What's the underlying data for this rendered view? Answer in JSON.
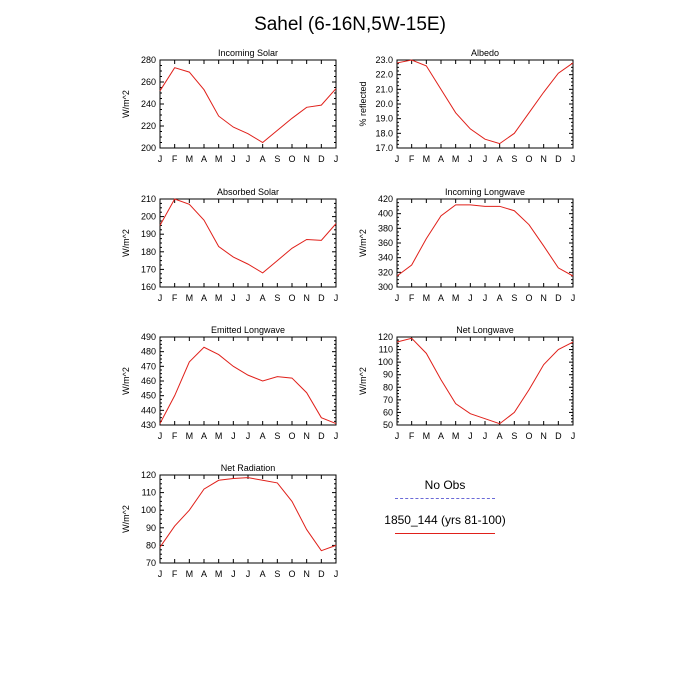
{
  "title": "Sahel (6-16N,5W-15E)",
  "legend": {
    "items": [
      {
        "label": "No Obs",
        "color": "#6a6ad8",
        "style": "dashed"
      },
      {
        "label": "1850_144 (yrs 81-100)",
        "color": "#e0201a",
        "style": "solid"
      }
    ]
  },
  "chart_data": [
    {
      "type": "line",
      "title": "Incoming Solar",
      "ylabel": "W/m^2",
      "categories": [
        "J",
        "F",
        "M",
        "A",
        "M",
        "J",
        "J",
        "A",
        "S",
        "O",
        "N",
        "D",
        "J"
      ],
      "ylim": [
        200,
        280
      ],
      "yticks": [
        200,
        220,
        240,
        260,
        280
      ],
      "ytick_labels": [
        "200",
        "220",
        "240",
        "260",
        "280"
      ],
      "series": [
        {
          "name": "1850_144 (yrs 81-100)",
          "color": "#e0201a",
          "values": [
            252,
            273,
            269,
            253,
            229,
            219,
            213,
            205,
            216,
            227,
            237,
            239,
            254
          ]
        }
      ]
    },
    {
      "type": "line",
      "title": "Albedo",
      "ylabel": "% reflected",
      "categories": [
        "J",
        "F",
        "M",
        "A",
        "M",
        "J",
        "J",
        "A",
        "S",
        "O",
        "N",
        "D",
        "J"
      ],
      "ylim": [
        17,
        23
      ],
      "yticks": [
        17,
        18,
        19,
        20,
        21,
        22,
        23
      ],
      "ytick_labels": [
        "17.0",
        "18.0",
        "19.0",
        "20.0",
        "21.0",
        "22.0",
        "23.0"
      ],
      "series": [
        {
          "name": "1850_144 (yrs 81-100)",
          "color": "#e0201a",
          "values": [
            22.8,
            23.0,
            22.6,
            21.0,
            19.4,
            18.3,
            17.6,
            17.3,
            18.0,
            19.4,
            20.8,
            22.1,
            22.8
          ]
        }
      ]
    },
    {
      "type": "line",
      "title": "Absorbed Solar",
      "ylabel": "W/m^2",
      "categories": [
        "J",
        "F",
        "M",
        "A",
        "M",
        "J",
        "J",
        "A",
        "S",
        "O",
        "N",
        "D",
        "J"
      ],
      "ylim": [
        160,
        210
      ],
      "yticks": [
        160,
        170,
        180,
        190,
        200,
        210
      ],
      "ytick_labels": [
        "160",
        "170",
        "180",
        "190",
        "200",
        "210"
      ],
      "series": [
        {
          "name": "1850_144 (yrs 81-100)",
          "color": "#e0201a",
          "values": [
            195,
            210,
            207,
            198,
            183,
            177,
            173,
            168,
            175,
            182,
            187,
            186.5,
            196
          ]
        }
      ]
    },
    {
      "type": "line",
      "title": "Incoming Longwave",
      "ylabel": "W/m^2",
      "categories": [
        "J",
        "F",
        "M",
        "A",
        "M",
        "J",
        "J",
        "A",
        "S",
        "O",
        "N",
        "D",
        "J"
      ],
      "ylim": [
        300,
        420
      ],
      "yticks": [
        300,
        320,
        340,
        360,
        380,
        400,
        420
      ],
      "ytick_labels": [
        "300",
        "320",
        "340",
        "360",
        "380",
        "400",
        "420"
      ],
      "series": [
        {
          "name": "1850_144 (yrs 81-100)",
          "color": "#e0201a",
          "values": [
            315,
            330,
            366,
            397,
            412,
            412,
            410,
            410,
            404,
            385,
            356,
            326,
            315
          ]
        }
      ]
    },
    {
      "type": "line",
      "title": "Emitted Longwave",
      "ylabel": "W/m^2",
      "categories": [
        "J",
        "F",
        "M",
        "A",
        "M",
        "J",
        "J",
        "A",
        "S",
        "O",
        "N",
        "D",
        "J"
      ],
      "ylim": [
        430,
        490
      ],
      "yticks": [
        430,
        440,
        450,
        460,
        470,
        480,
        490
      ],
      "ytick_labels": [
        "430",
        "440",
        "450",
        "460",
        "470",
        "480",
        "490"
      ],
      "series": [
        {
          "name": "1850_144 (yrs 81-100)",
          "color": "#e0201a",
          "values": [
            431,
            450,
            473,
            483,
            478,
            470,
            464,
            460,
            463,
            462,
            452,
            435,
            431
          ]
        }
      ]
    },
    {
      "type": "line",
      "title": "Net Longwave",
      "ylabel": "W/m^2",
      "categories": [
        "J",
        "F",
        "M",
        "A",
        "M",
        "J",
        "J",
        "A",
        "S",
        "O",
        "N",
        "D",
        "J"
      ],
      "ylim": [
        50,
        120
      ],
      "yticks": [
        50,
        60,
        70,
        80,
        90,
        100,
        110,
        120
      ],
      "ytick_labels": [
        "50",
        "60",
        "70",
        "80",
        "90",
        "100",
        "110",
        "120"
      ],
      "series": [
        {
          "name": "1850_144 (yrs 81-100)",
          "color": "#e0201a",
          "values": [
            116,
            119,
            107,
            86,
            67,
            59,
            55,
            51,
            60,
            78,
            98,
            110,
            116
          ]
        }
      ]
    },
    {
      "type": "line",
      "title": "Net Radiation",
      "ylabel": "W/m^2",
      "categories": [
        "J",
        "F",
        "M",
        "A",
        "M",
        "J",
        "J",
        "A",
        "S",
        "O",
        "N",
        "D",
        "J"
      ],
      "ylim": [
        70,
        120
      ],
      "yticks": [
        70,
        80,
        90,
        100,
        110,
        120
      ],
      "ytick_labels": [
        "70",
        "80",
        "90",
        "100",
        "110",
        "120"
      ],
      "series": [
        {
          "name": "1850_144 (yrs 81-100)",
          "color": "#e0201a",
          "values": [
            79,
            91,
            100,
            112,
            117,
            118,
            118.5,
            117,
            115.5,
            105,
            89,
            77,
            80
          ]
        }
      ]
    }
  ]
}
